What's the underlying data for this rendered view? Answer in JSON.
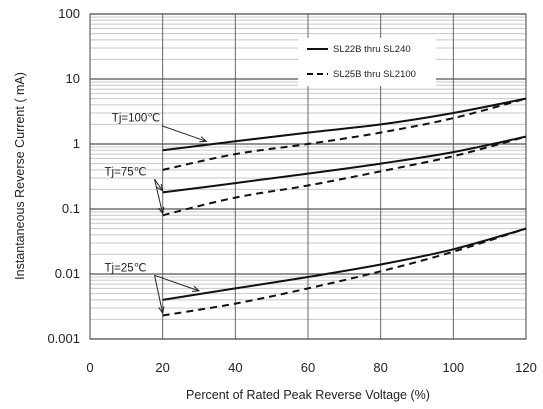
{
  "chart_data": {
    "type": "line",
    "title": "",
    "xlabel": "Percent of  Rated Peak Reverse Voltage (%)",
    "ylabel": "Instantaneous Reverse Current ( mA)",
    "xlim": [
      0,
      120
    ],
    "ylim": [
      0.001,
      100
    ],
    "yscale": "log",
    "grid": true,
    "legend_position": "top-right",
    "x_ticks": [
      "0",
      "20",
      "40",
      "60",
      "80",
      "100",
      "120"
    ],
    "y_ticks": [
      "0.001",
      "0.01",
      "0.1",
      "1",
      "10",
      "100"
    ],
    "series": [
      {
        "name": "SL22B thru SL240",
        "style": "solid",
        "curves": [
          {
            "label": "Tj=100℃",
            "x": [
              20,
              40,
              60,
              80,
              100,
              120
            ],
            "y": [
              0.8,
              1.1,
              1.5,
              2.0,
              3.0,
              5.0
            ]
          },
          {
            "label": "Tj=75℃",
            "x": [
              20,
              40,
              60,
              80,
              100,
              120
            ],
            "y": [
              0.18,
              0.25,
              0.35,
              0.5,
              0.75,
              1.3
            ]
          },
          {
            "label": "Tj=25℃",
            "x": [
              20,
              40,
              60,
              80,
              100,
              120
            ],
            "y": [
              0.004,
              0.006,
              0.009,
              0.014,
              0.024,
              0.05
            ]
          }
        ]
      },
      {
        "name": "SL25B thru SL2100",
        "style": "dashed",
        "curves": [
          {
            "label": "Tj=100℃",
            "x": [
              20,
              40,
              60,
              80,
              100,
              120
            ],
            "y": [
              0.4,
              0.7,
              1.0,
              1.5,
              2.5,
              5.0
            ]
          },
          {
            "label": "Tj=75℃",
            "x": [
              20,
              40,
              60,
              80,
              100,
              120
            ],
            "y": [
              0.08,
              0.15,
              0.23,
              0.38,
              0.65,
              1.3
            ]
          },
          {
            "label": "Tj=25℃",
            "x": [
              20,
              40,
              60,
              80,
              100,
              120
            ],
            "y": [
              0.0023,
              0.0035,
              0.006,
              0.011,
              0.022,
              0.05
            ]
          }
        ]
      }
    ],
    "annotations": [
      {
        "text": "Tj=100℃",
        "x": 6,
        "y": 2.2,
        "arrow_to": [
          32,
          1.1
        ]
      },
      {
        "text": "Tj=75℃",
        "x": 4,
        "y": 0.33,
        "arrow_to": [
          20,
          0.19
        ]
      },
      {
        "text": "Tj=75℃",
        "x": 4,
        "y": 0.33,
        "arrow_to": [
          20,
          0.085
        ]
      },
      {
        "text": "Tj=25℃",
        "x": 4,
        "y": 0.011,
        "arrow_to": [
          30,
          0.0055
        ]
      },
      {
        "text": "Tj=25℃",
        "x": 4,
        "y": 0.011,
        "arrow_to": [
          20,
          0.0025
        ]
      }
    ]
  }
}
